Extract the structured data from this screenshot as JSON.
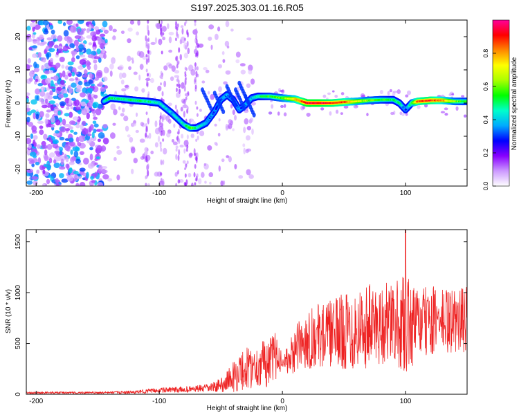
{
  "title": "S197.2025.303.01.16.R05",
  "chart_data": [
    {
      "type": "heatmap",
      "name": "spectrogram",
      "xlabel": "Height of straight line (km)",
      "ylabel": "Frequency (Hz)",
      "xlim": [
        -208,
        150
      ],
      "ylim": [
        -25,
        25
      ],
      "xticks": [
        -200,
        -100,
        0,
        100
      ],
      "yticks": [
        -20,
        -10,
        0,
        10,
        20
      ],
      "colorbar": {
        "label": "Normalized spectral amplitude",
        "range": [
          0,
          1
        ],
        "ticks": [
          "0.0",
          "0.2",
          "0.4",
          "0.6",
          "0.8"
        ],
        "colors": [
          "#ffffff",
          "#cc99ff",
          "#8800ff",
          "#0000ff",
          "#00aaff",
          "#00ffcc",
          "#00ff00",
          "#aaff00",
          "#ffff00",
          "#ff8800",
          "#ff0000",
          "#ff0099"
        ]
      },
      "ridge": {
        "x": [
          -145,
          -140,
          -130,
          -120,
          -110,
          -100,
          -90,
          -80,
          -75,
          -70,
          -62,
          -55,
          -50,
          -45,
          -40,
          -35,
          -30,
          -25,
          -20,
          -10,
          0,
          10,
          20,
          30,
          40,
          50,
          60,
          70,
          80,
          90,
          95,
          100,
          105,
          110,
          120,
          130,
          140,
          150
        ],
        "freq_hz": [
          0.5,
          1.5,
          1.2,
          0.8,
          0.5,
          0,
          -3,
          -6.5,
          -7.5,
          -7.5,
          -6,
          -2.5,
          1,
          2.5,
          1,
          -2,
          -0.5,
          1.5,
          2,
          2,
          1.5,
          1.2,
          0,
          0,
          0,
          0.3,
          0.5,
          0.8,
          1,
          1,
          0,
          -2,
          0,
          0.5,
          0.8,
          0.8,
          0.5,
          0.5
        ],
        "amplitude": [
          0.4,
          0.5,
          0.5,
          0.5,
          0.5,
          0.45,
          0.4,
          0.45,
          0.6,
          0.5,
          0.35,
          0.3,
          0.3,
          0.35,
          0.3,
          0.3,
          0.35,
          0.4,
          0.5,
          0.55,
          0.6,
          0.75,
          0.95,
          0.95,
          0.9,
          0.85,
          0.7,
          0.6,
          0.55,
          0.5,
          0.5,
          0.3,
          0.55,
          0.85,
          0.9,
          0.8,
          0.6,
          0.55
        ]
      }
    },
    {
      "type": "line",
      "name": "snr",
      "xlabel": "Height of straight line (km)",
      "ylabel": "SNR (10 * v/v)",
      "xlim": [
        -208,
        150
      ],
      "ylim": [
        0,
        1620
      ],
      "xticks": [
        -200,
        -100,
        0,
        100
      ],
      "yticks": [
        0,
        500,
        1000,
        1500
      ],
      "color": "#ee2222",
      "envelope": {
        "x": [
          -208,
          -150,
          -120,
          -100,
          -80,
          -60,
          -50,
          -40,
          -30,
          -20,
          -15,
          -10,
          -5,
          0,
          5,
          10,
          20,
          30,
          40,
          50,
          60,
          70,
          80,
          90,
          100,
          110,
          120,
          130,
          140,
          150
        ],
        "mean": [
          15,
          15,
          20,
          40,
          45,
          60,
          90,
          170,
          250,
          280,
          300,
          330,
          370,
          330,
          330,
          430,
          550,
          580,
          600,
          620,
          650,
          680,
          700,
          690,
          680,
          690,
          720,
          720,
          720,
          740
        ],
        "amp": [
          10,
          10,
          15,
          25,
          30,
          40,
          70,
          150,
          220,
          200,
          250,
          230,
          250,
          60,
          150,
          230,
          300,
          320,
          330,
          380,
          420,
          420,
          420,
          400,
          500,
          350,
          350,
          330,
          330,
          330
        ]
      },
      "peak": {
        "x": 100,
        "value": 1620
      }
    }
  ]
}
